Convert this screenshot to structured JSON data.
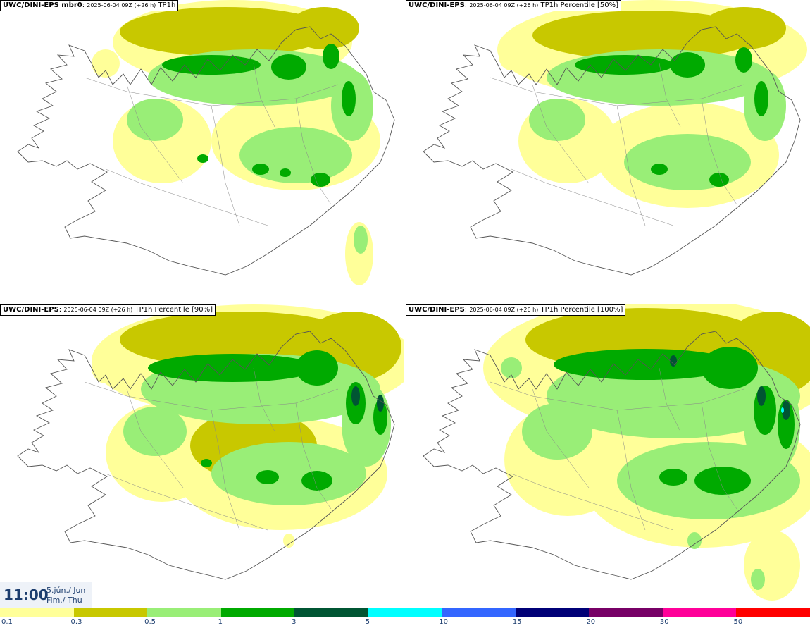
{
  "panels": [
    {
      "model": "UWC/DINI-EPS mbr0",
      "run": "2025-06-04 09Z (+26 h)",
      "field": "TP1h"
    },
    {
      "model": "UWC/DINI-EPS",
      "run": "2025-06-04 09Z (+26 h)",
      "field": "TP1h Percentile [50%]"
    },
    {
      "model": "UWC/DINI-EPS",
      "run": "2025-06-04 09Z (+26 h)",
      "field": "TP1h Percentile [90%]"
    },
    {
      "model": "UWC/DINI-EPS",
      "run": "2025-06-04 09Z (+26 h)",
      "field": "TP1h Percentile [100%]"
    }
  ],
  "valid_time": {
    "time": "11:00",
    "date_line1": "5.jún./ Jun",
    "date_line2": "Fim./ Thu"
  },
  "legend": {
    "ticks": [
      "0.1",
      "0.3",
      "0.5",
      "1",
      "3",
      "5",
      "10",
      "15",
      "20",
      "30",
      "50"
    ],
    "colors": [
      "#ffff99",
      "#c8c800",
      "#99ee77",
      "#00aa00",
      "#005533",
      "#00ffff",
      "#3366ff",
      "#000077",
      "#770066",
      "#ff0099",
      "#ff0000"
    ]
  }
}
